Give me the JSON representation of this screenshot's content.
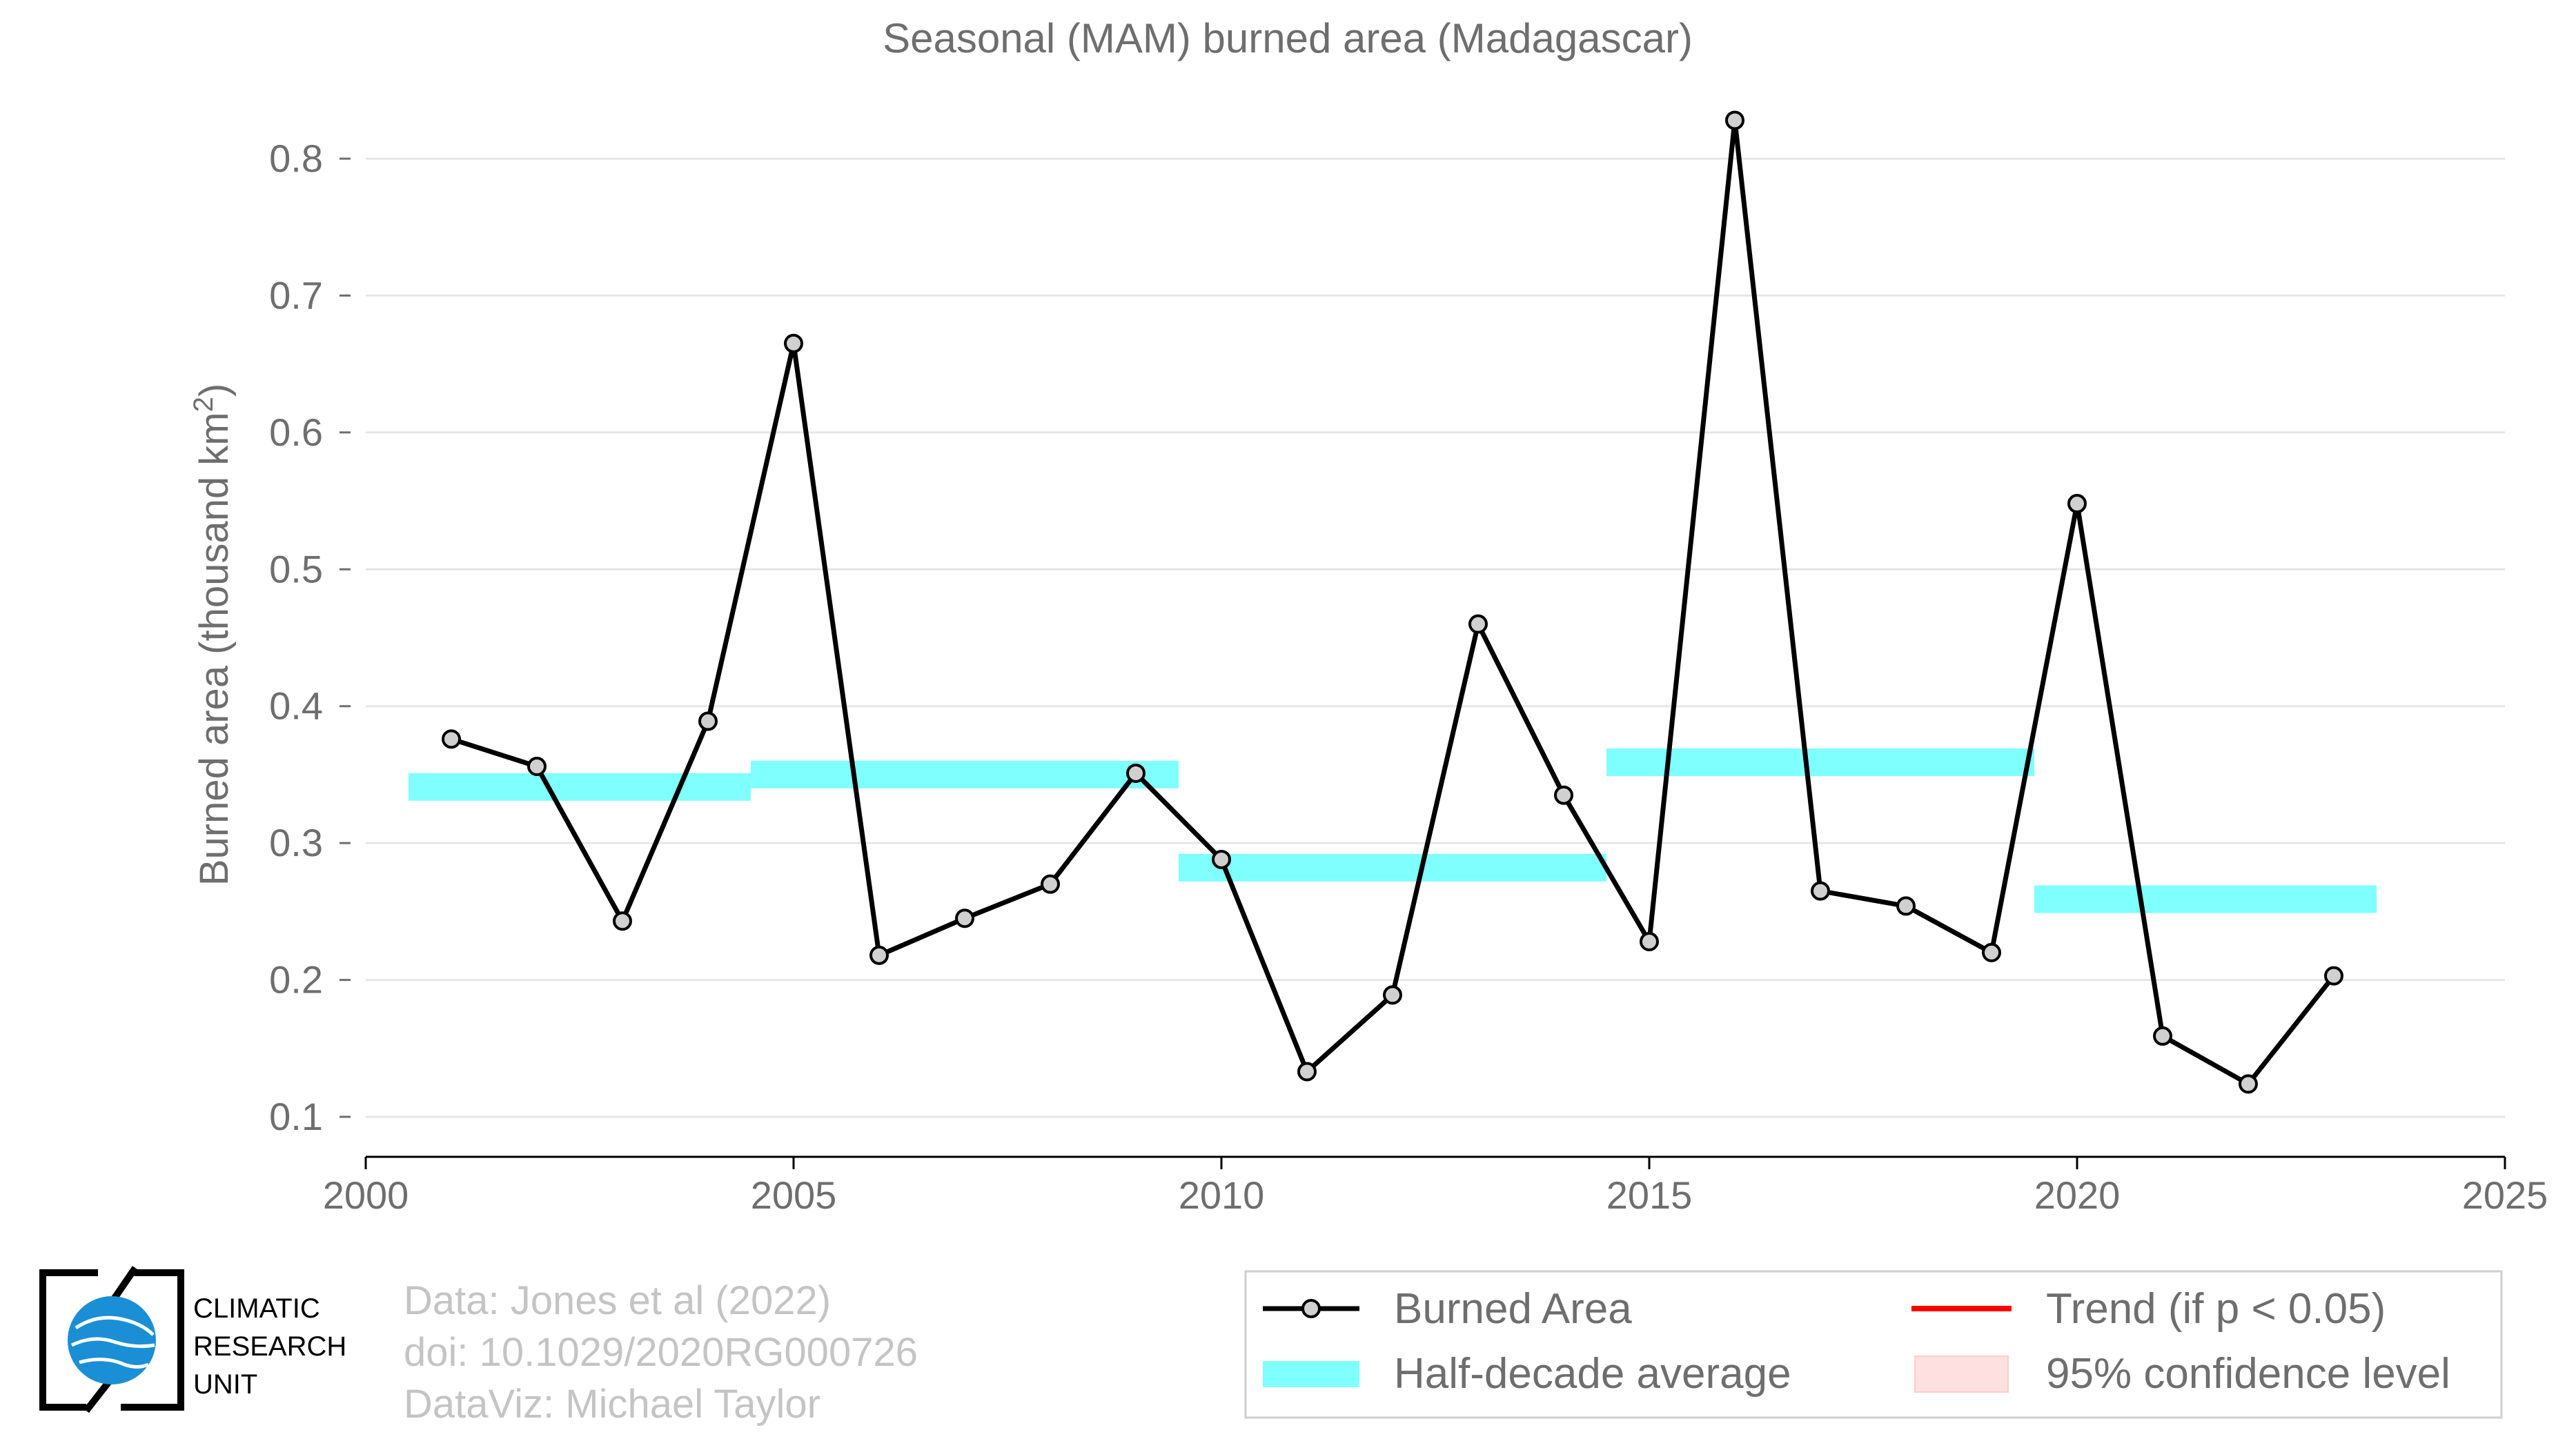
{
  "chart_data": {
    "type": "line",
    "title": "Seasonal (MAM) burned area (Madagascar)",
    "ylabel_main": "Burned area (thousand km",
    "ylabel_sup": "2",
    "ylabel_end": ")",
    "xlim": [
      2000,
      2025
    ],
    "ylim": [
      0.1,
      0.85
    ],
    "xticks": [
      "2000",
      "2005",
      "2010",
      "2015",
      "2020",
      "2025"
    ],
    "yticks": [
      "0.1",
      "0.2",
      "0.3",
      "0.4",
      "0.5",
      "0.6",
      "0.7",
      "0.8"
    ],
    "grid": "horizontal",
    "series": [
      {
        "name": "Burned Area",
        "color": "#000000",
        "marker_fill": "#d0d0d0",
        "x": [
          2001,
          2002,
          2003,
          2004,
          2005,
          2006,
          2007,
          2008,
          2009,
          2010,
          2011,
          2012,
          2013,
          2014,
          2015,
          2016,
          2017,
          2018,
          2019,
          2020,
          2021,
          2022,
          2023
        ],
        "y": [
          0.376,
          0.356,
          0.243,
          0.389,
          0.665,
          0.218,
          0.245,
          0.27,
          0.351,
          0.288,
          0.133,
          0.189,
          0.46,
          0.335,
          0.228,
          0.828,
          0.265,
          0.254,
          0.22,
          0.548,
          0.159,
          0.124,
          0.203
        ]
      }
    ],
    "half_decade_average": {
      "name": "Half-decade average",
      "color": "#80ffff",
      "segments": [
        {
          "x0": 2000.5,
          "x1": 2004.5,
          "y": 0.341
        },
        {
          "x0": 2004.5,
          "x1": 2009.5,
          "y": 0.35
        },
        {
          "x0": 2009.5,
          "x1": 2014.5,
          "y": 0.282
        },
        {
          "x0": 2014.5,
          "x1": 2019.5,
          "y": 0.359
        },
        {
          "x0": 2019.5,
          "x1": 2023.5,
          "y": 0.259
        }
      ]
    },
    "legend": {
      "placement": "bottom-right",
      "items": [
        {
          "label": "Burned Area",
          "kind": "line-marker",
          "color": "#000000"
        },
        {
          "label": "Trend (if p < 0.05)",
          "kind": "line",
          "color": "#ff0000"
        },
        {
          "label": "Half-decade average",
          "kind": "band",
          "color": "#80ffff"
        },
        {
          "label": "95% confidence level",
          "kind": "patch",
          "color": "#ffe0e0"
        }
      ]
    }
  },
  "credits": [
    "Data: Jones et al (2022)",
    "doi: 10.1029/2020RG000726",
    "DataViz: Michael Taylor"
  ],
  "logo": {
    "icon": "globe-icon",
    "lines": [
      "CLIMATIC",
      "RESEARCH",
      "UNIT"
    ]
  }
}
